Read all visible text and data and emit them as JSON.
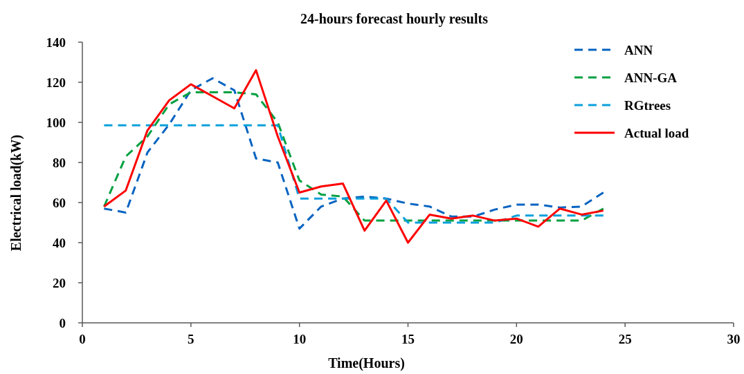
{
  "chart_data": {
    "type": "line",
    "title": "24-hours forecast hourly results",
    "xlabel": "Time(Hours)",
    "ylabel": "Electrical load(kW)",
    "x": [
      1,
      2,
      3,
      4,
      5,
      6,
      7,
      8,
      9,
      10,
      11,
      12,
      13,
      14,
      15,
      16,
      17,
      18,
      19,
      20,
      21,
      22,
      23,
      24
    ],
    "xlim": [
      0,
      30
    ],
    "xticks": [
      0,
      5,
      10,
      15,
      20,
      25,
      30
    ],
    "ylim": [
      0,
      140
    ],
    "yticks": [
      0,
      20,
      40,
      60,
      80,
      100,
      120,
      140
    ],
    "grid": false,
    "legend": "top right",
    "marker": "none",
    "series": [
      {
        "name": "ANN",
        "color": "#0563c1",
        "line_style": "dashed",
        "values": [
          57,
          55,
          85,
          99,
          116,
          122,
          116,
          82,
          80,
          47,
          58,
          62,
          63,
          62,
          59.5,
          58,
          53,
          53,
          56.5,
          59,
          59,
          57.5,
          58,
          65
        ]
      },
      {
        "name": "ANN-GA",
        "color": "#00a040",
        "line_style": "dashed",
        "values": [
          58,
          83,
          93,
          109,
          115,
          115,
          115,
          114,
          100,
          71,
          64,
          63,
          51,
          51,
          51,
          51,
          51,
          51,
          51,
          51,
          51,
          51,
          51,
          57
        ]
      },
      {
        "name": "RGtrees",
        "color": "#0aa0dc",
        "line_style": "dashed",
        "values": [
          98.5,
          98.5,
          98.5,
          98.5,
          98.5,
          98.5,
          98.5,
          98.5,
          98.5,
          62,
          62,
          62,
          62,
          62,
          50,
          50,
          50,
          50,
          50,
          53.5,
          53.5,
          53.5,
          53.5,
          53.5
        ]
      },
      {
        "name": "Actual load",
        "color": "#ff0000",
        "line_style": "solid",
        "values": [
          58,
          66,
          96,
          111,
          119,
          113,
          107,
          126,
          93,
          65,
          68,
          69.5,
          46,
          61,
          40,
          54,
          52,
          53.5,
          51,
          52,
          48,
          57,
          54,
          56
        ]
      }
    ]
  }
}
